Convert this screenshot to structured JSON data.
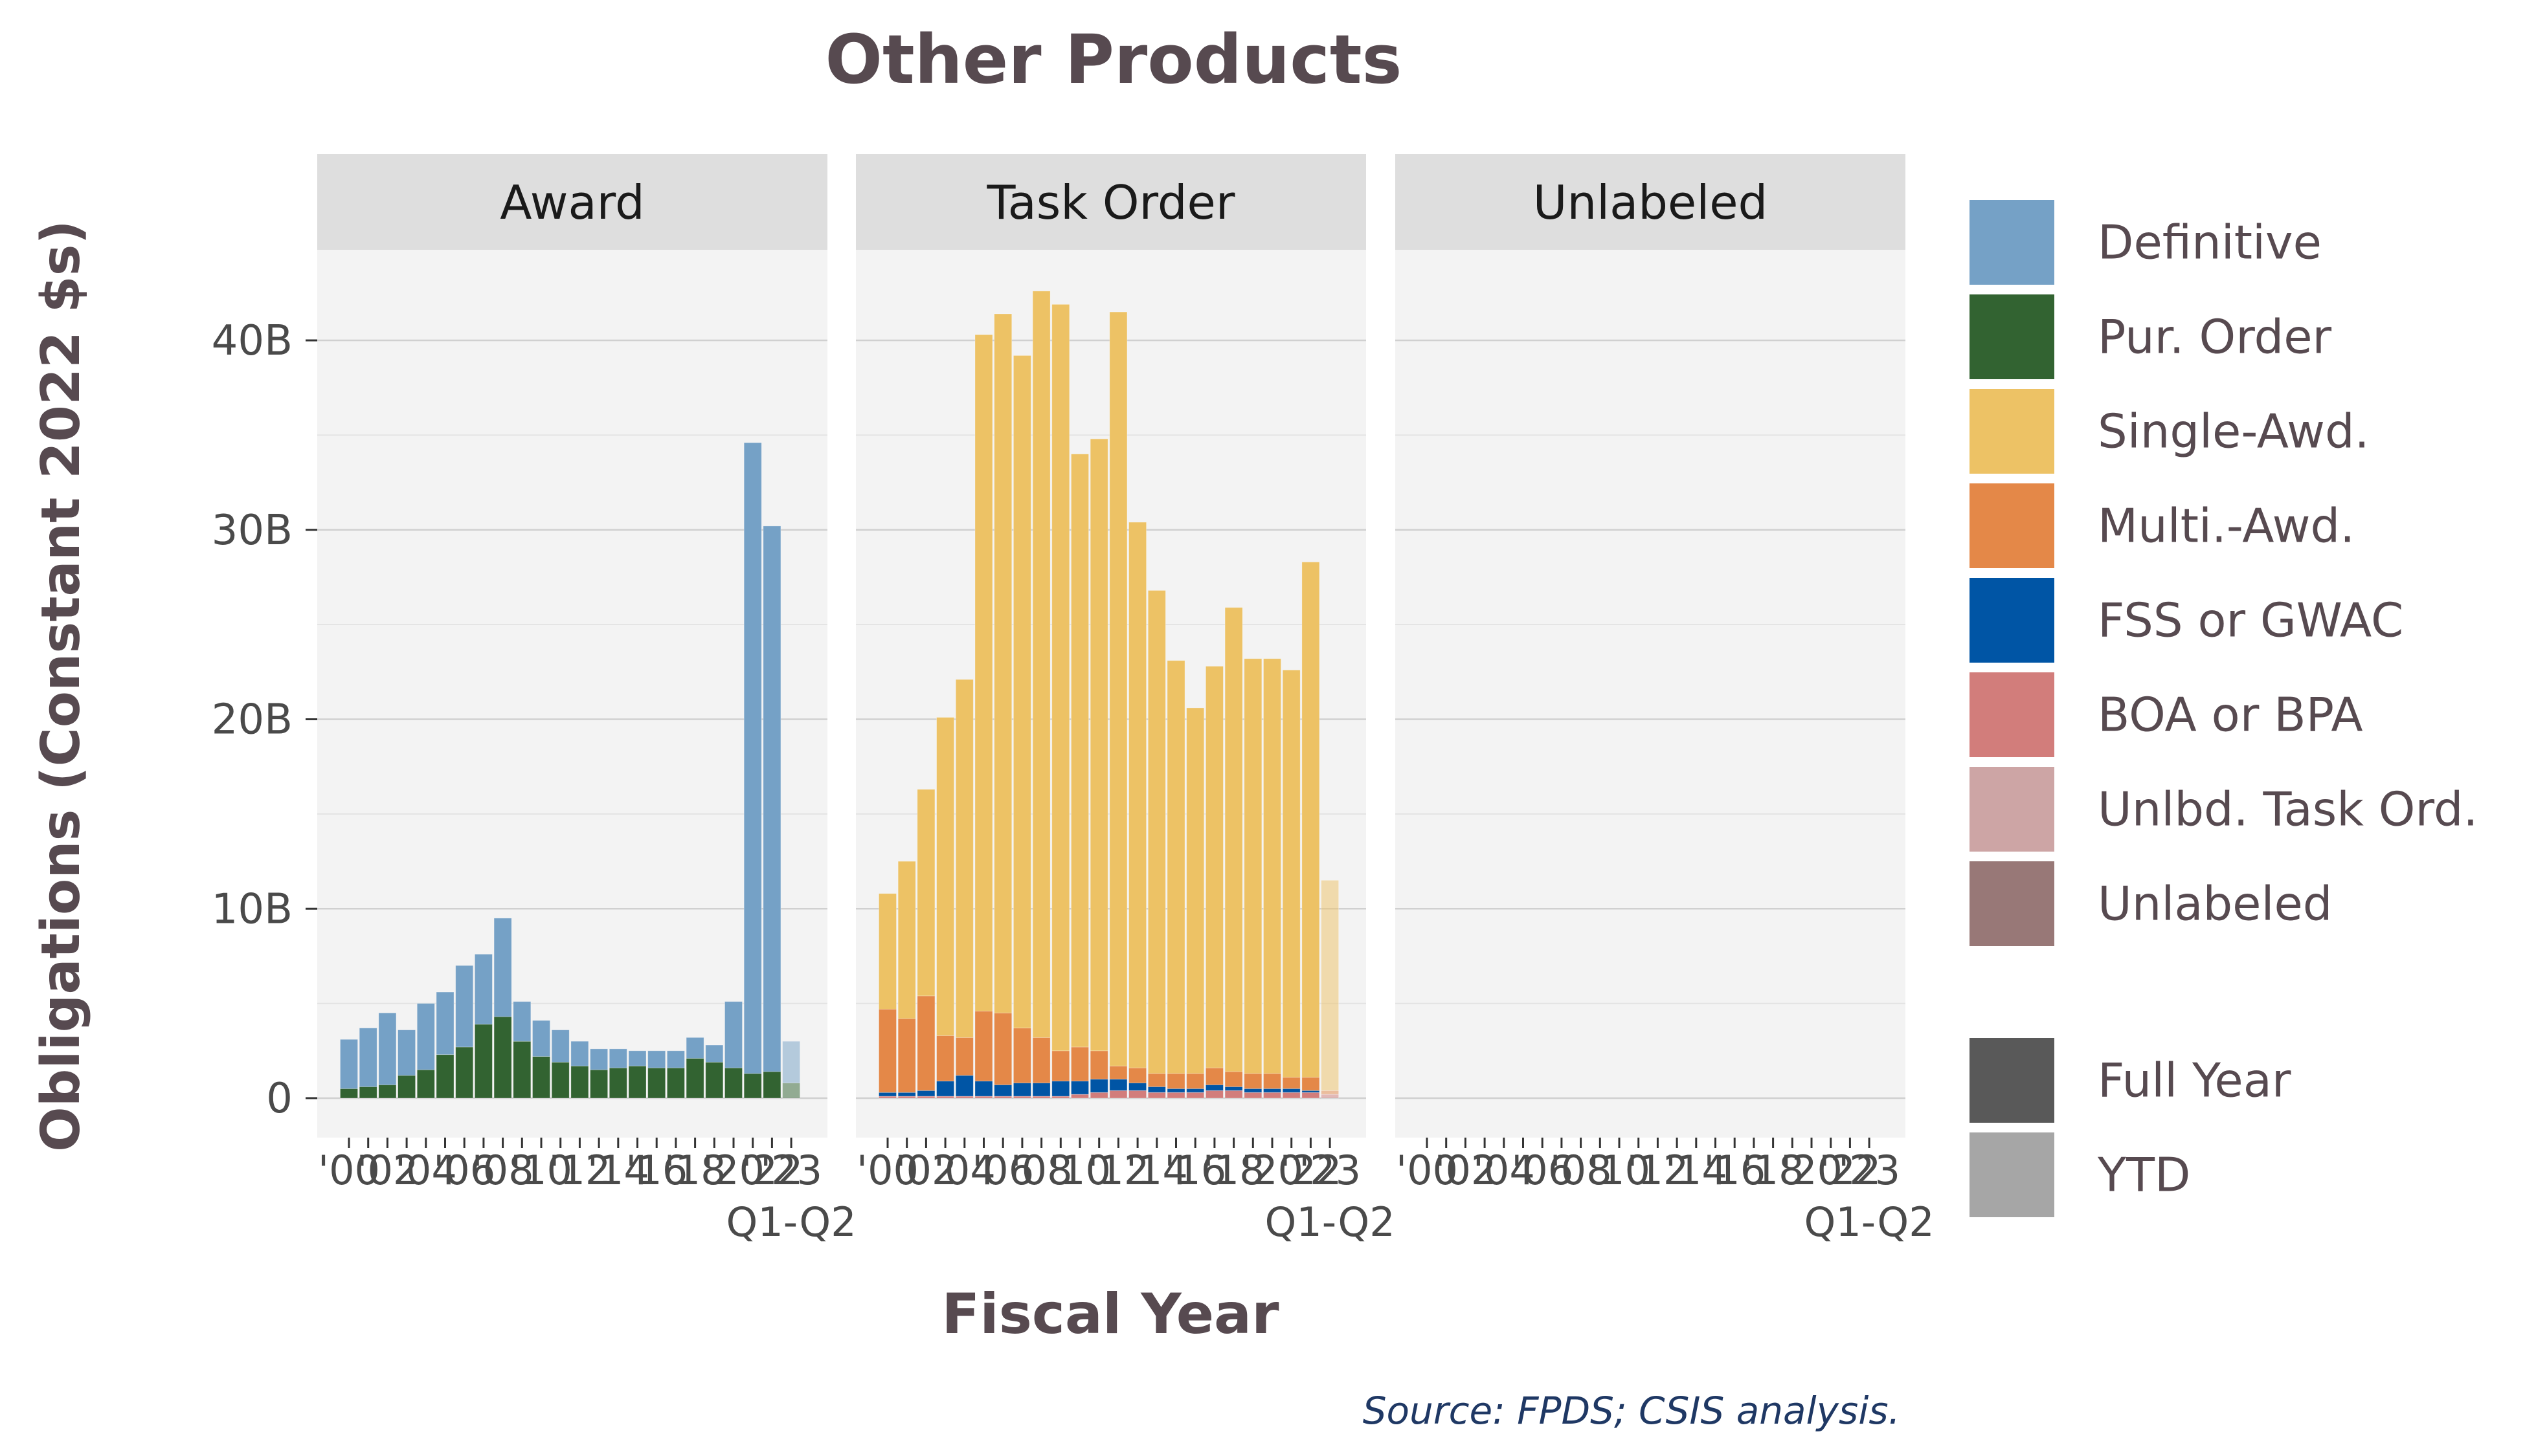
{
  "title": "Other Products",
  "source": "Source: FPDS; CSIS analysis.",
  "colors": {
    "Definitive": "#75a1c6",
    "Pur. Order": "#326331",
    "Single-Awd.": "#edc265",
    "Multi.-Awd.": "#e48848",
    "FSS or GWAC": "#0055a5",
    "BOA or BPA": "#d27d7b",
    "Unlbd. Task Ord.": "#cda5a5",
    "Unlabeled": "#987877",
    "Full Year": "#595959",
    "YTD": "#a6a6a6"
  },
  "chart_data": {
    "type": "bar",
    "stacked": true,
    "facet_by": "vehicle type",
    "facets": [
      "Award",
      "Task Order",
      "Unlabeled"
    ],
    "xlabel": "Fiscal Year",
    "ylabel": "Obligations (Constant 2022 $s)",
    "ylim": [
      0,
      45
    ],
    "y_unit": "B",
    "y_ticks": [
      0,
      10,
      20,
      30,
      40
    ],
    "y_tick_labels": [
      "0",
      "10B",
      "20B",
      "30B",
      "40B"
    ],
    "x_tick_labels": [
      "'00",
      "'02",
      "'04",
      "'06",
      "'08",
      "'10",
      "'12",
      "'14",
      "'16",
      "'18",
      "'20",
      "'22",
      "'23"
    ],
    "x_tick_sublabel": "Q1-Q2",
    "categories": [
      "2000",
      "2001",
      "2002",
      "2003",
      "2004",
      "2005",
      "2006",
      "2007",
      "2008",
      "2009",
      "2010",
      "2011",
      "2012",
      "2013",
      "2014",
      "2015",
      "2016",
      "2017",
      "2018",
      "2019",
      "2020",
      "2021",
      "2022",
      "2023"
    ],
    "ytd_category": "2023",
    "grid": true,
    "legend_position": "right",
    "legend": {
      "fill": [
        "Definitive",
        "Pur. Order",
        "Single-Awd.",
        "Multi.-Awd.",
        "FSS or GWAC",
        "BOA or BPA",
        "Unlbd. Task Ord.",
        "Unlabeled"
      ],
      "alpha": [
        "Full Year",
        "YTD"
      ]
    },
    "panels": [
      {
        "facet": "Award",
        "series": [
          {
            "name": "Pur. Order",
            "values": [
              0.5,
              0.6,
              0.7,
              1.2,
              1.5,
              2.3,
              2.7,
              3.9,
              4.3,
              3.0,
              2.2,
              1.9,
              1.7,
              1.5,
              1.6,
              1.7,
              1.6,
              1.6,
              2.1,
              1.9,
              1.6,
              1.3,
              1.4,
              0.8
            ]
          },
          {
            "name": "Definitive",
            "values": [
              2.6,
              3.1,
              3.8,
              2.4,
              3.5,
              3.3,
              4.3,
              3.7,
              5.2,
              2.1,
              1.9,
              1.7,
              1.3,
              1.1,
              1.0,
              0.8,
              0.9,
              0.9,
              1.1,
              0.9,
              3.5,
              33.3,
              28.8,
              2.2
            ]
          }
        ]
      },
      {
        "facet": "Task Order",
        "series": [
          {
            "name": "BOA or BPA",
            "values": [
              0.1,
              0.1,
              0.1,
              0.1,
              0.1,
              0.1,
              0.1,
              0.1,
              0.1,
              0.1,
              0.2,
              0.3,
              0.4,
              0.4,
              0.3,
              0.3,
              0.3,
              0.4,
              0.4,
              0.3,
              0.3,
              0.3,
              0.3,
              0.2
            ]
          },
          {
            "name": "FSS or GWAC",
            "values": [
              0.2,
              0.2,
              0.3,
              0.8,
              1.1,
              0.8,
              0.6,
              0.7,
              0.7,
              0.8,
              0.7,
              0.7,
              0.6,
              0.4,
              0.3,
              0.2,
              0.2,
              0.3,
              0.2,
              0.2,
              0.2,
              0.2,
              0.1,
              0.0
            ]
          },
          {
            "name": "Multi.-Awd.",
            "values": [
              4.4,
              3.9,
              5.0,
              2.4,
              2.0,
              3.7,
              3.8,
              2.9,
              2.4,
              1.6,
              1.8,
              1.5,
              0.7,
              0.8,
              0.7,
              0.8,
              0.8,
              0.9,
              0.8,
              0.8,
              0.8,
              0.6,
              0.7,
              0.2
            ]
          },
          {
            "name": "Single-Awd.",
            "values": [
              6.1,
              8.3,
              10.9,
              16.8,
              18.9,
              35.7,
              36.9,
              35.5,
              39.4,
              39.4,
              31.3,
              32.3,
              39.8,
              28.8,
              25.5,
              21.8,
              19.3,
              21.2,
              24.5,
              21.9,
              21.9,
              21.5,
              27.2,
              11.1
            ]
          }
        ]
      },
      {
        "facet": "Unlabeled",
        "series": []
      }
    ]
  }
}
